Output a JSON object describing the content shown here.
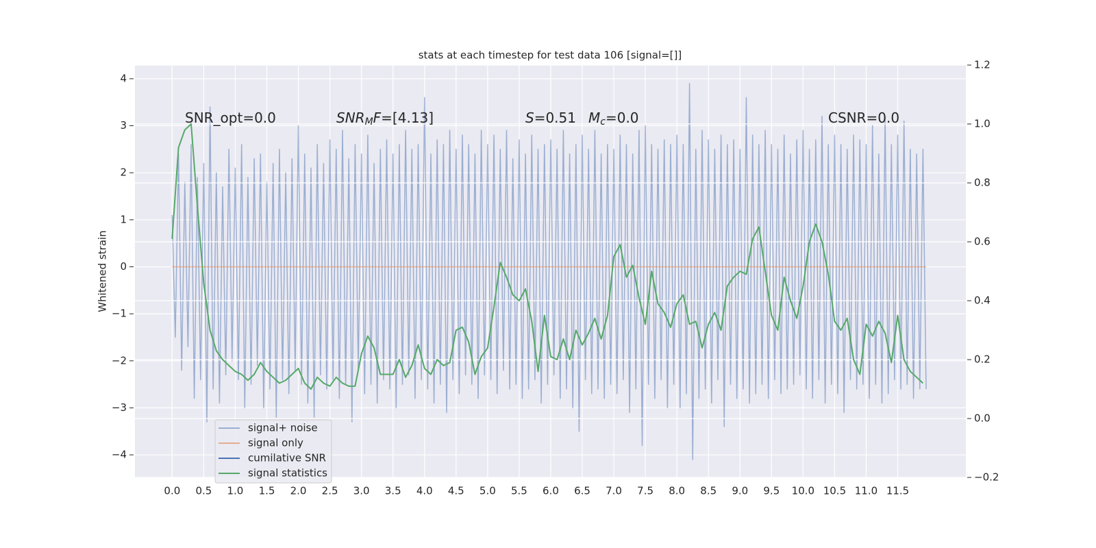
{
  "chart_data": {
    "type": "line",
    "title": "stats at each timestep for test data 106 [signal=[]]",
    "y_label": "Whitened strain",
    "grid": true,
    "legend": "lower left",
    "xlim": [
      -0.59,
      12.58
    ],
    "ylim": [
      -4.48,
      4.29
    ],
    "y2lim": [
      -0.2,
      1.2
    ],
    "xticks": [
      {
        "value": 0,
        "label": "0.0"
      },
      {
        "value": 0.5,
        "label": "0.5"
      },
      {
        "value": 1,
        "label": "1.0"
      },
      {
        "value": 1.5,
        "label": "1.5"
      },
      {
        "value": 2,
        "label": "2.0"
      },
      {
        "value": 2.5,
        "label": "2.5"
      },
      {
        "value": 3,
        "label": "3.0"
      },
      {
        "value": 3.5,
        "label": "3.5"
      },
      {
        "value": 4,
        "label": "4.0"
      },
      {
        "value": 4.5,
        "label": "4.5"
      },
      {
        "value": 5,
        "label": "5.0"
      },
      {
        "value": 5.5,
        "label": "5.5"
      },
      {
        "value": 6,
        "label": "6.0"
      },
      {
        "value": 6.5,
        "label": "6.5"
      },
      {
        "value": 7,
        "label": "7.0"
      },
      {
        "value": 7.5,
        "label": "7.5"
      },
      {
        "value": 8,
        "label": "8.0"
      },
      {
        "value": 8.5,
        "label": "8.5"
      },
      {
        "value": 9,
        "label": "9.0"
      },
      {
        "value": 9.5,
        "label": "9.5"
      },
      {
        "value": 10,
        "label": "10.0"
      },
      {
        "value": 10.5,
        "label": "10.5"
      },
      {
        "value": 11,
        "label": "11.0"
      },
      {
        "value": 11.5,
        "label": "11.5"
      }
    ],
    "yticks": [
      {
        "value": -4,
        "label": "−4"
      },
      {
        "value": -3,
        "label": "−3"
      },
      {
        "value": -2,
        "label": "−2"
      },
      {
        "value": -1,
        "label": "−1"
      },
      0,
      1,
      2,
      3,
      4
    ],
    "y2ticks": [
      {
        "value": -0.2,
        "label": "−0.2"
      },
      {
        "value": 0,
        "label": "0.0"
      },
      {
        "value": 0.2,
        "label": "0.2"
      },
      {
        "value": 0.4,
        "label": "0.4"
      },
      {
        "value": 0.6,
        "label": "0.6"
      },
      {
        "value": 0.8,
        "label": "0.8"
      },
      {
        "value": 1,
        "label": "1.0"
      },
      {
        "value": 1.2,
        "label": "1.2"
      }
    ],
    "annotations": [
      {
        "parts": [
          {
            "text": "SNR_opt=0.0"
          }
        ]
      },
      {
        "parts": [
          {
            "text": "SNR",
            "italic": true
          },
          {
            "text": "M",
            "italic": true,
            "sub": true
          },
          {
            "text": "F",
            "italic": true
          },
          {
            "text": "=[4.13]"
          }
        ]
      },
      {
        "parts": [
          {
            "text": "S",
            "italic": true
          },
          {
            "text": "=0.51"
          }
        ]
      },
      {
        "parts": [
          {
            "text": "M",
            "italic": true
          },
          {
            "text": "c",
            "italic": true,
            "sub": true
          },
          {
            "text": "=0.0"
          }
        ]
      },
      {
        "parts": [
          {
            "text": "CSNR=0.0"
          }
        ]
      }
    ],
    "series": [
      {
        "name": "signal+ noise",
        "color": "#4c72b0",
        "alpha": 0.5,
        "x": [
          0,
          0.05,
          0.1,
          0.15,
          0.2,
          0.25,
          0.3,
          0.35,
          0.4,
          0.45,
          0.5,
          0.55,
          0.6,
          0.65,
          0.7,
          0.75,
          0.8,
          0.85,
          0.9,
          0.95,
          1,
          1.05,
          1.1,
          1.15,
          1.2,
          1.25,
          1.3,
          1.35,
          1.4,
          1.45,
          1.5,
          1.55,
          1.6,
          1.65,
          1.7,
          1.75,
          1.8,
          1.85,
          1.9,
          1.95,
          2,
          2.05,
          2.1,
          2.15,
          2.2,
          2.25,
          2.3,
          2.35,
          2.4,
          2.45,
          2.5,
          2.55,
          2.6,
          2.65,
          2.7,
          2.75,
          2.8,
          2.85,
          2.9,
          2.95,
          3,
          3.05,
          3.1,
          3.15,
          3.2,
          3.25,
          3.3,
          3.35,
          3.4,
          3.45,
          3.5,
          3.55,
          3.6,
          3.65,
          3.7,
          3.75,
          3.8,
          3.85,
          3.9,
          3.95,
          4,
          4.05,
          4.1,
          4.15,
          4.2,
          4.25,
          4.3,
          4.35,
          4.4,
          4.45,
          4.5,
          4.55,
          4.6,
          4.65,
          4.7,
          4.75,
          4.8,
          4.85,
          4.9,
          4.95,
          5,
          5.05,
          5.1,
          5.15,
          5.2,
          5.25,
          5.3,
          5.35,
          5.4,
          5.45,
          5.5,
          5.55,
          5.6,
          5.65,
          5.7,
          5.75,
          5.8,
          5.85,
          5.9,
          5.95,
          6,
          6.05,
          6.1,
          6.15,
          6.2,
          6.25,
          6.3,
          6.35,
          6.4,
          6.45,
          6.5,
          6.55,
          6.6,
          6.65,
          6.7,
          6.75,
          6.8,
          6.85,
          6.9,
          6.95,
          7,
          7.05,
          7.1,
          7.15,
          7.2,
          7.25,
          7.3,
          7.35,
          7.4,
          7.45,
          7.5,
          7.55,
          7.6,
          7.65,
          7.7,
          7.75,
          7.8,
          7.85,
          7.9,
          7.95,
          8,
          8.05,
          8.1,
          8.15,
          8.2,
          8.25,
          8.3,
          8.35,
          8.4,
          8.45,
          8.5,
          8.55,
          8.6,
          8.65,
          8.7,
          8.75,
          8.8,
          8.85,
          8.9,
          8.95,
          9,
          9.05,
          9.1,
          9.15,
          9.2,
          9.25,
          9.3,
          9.35,
          9.4,
          9.45,
          9.5,
          9.55,
          9.6,
          9.65,
          9.7,
          9.75,
          9.8,
          9.85,
          9.9,
          9.95,
          10,
          10.05,
          10.1,
          10.15,
          10.2,
          10.25,
          10.3,
          10.35,
          10.4,
          10.45,
          10.5,
          10.55,
          10.6,
          10.65,
          10.7,
          10.75,
          10.8,
          10.85,
          10.9,
          10.95,
          11,
          11.05,
          11.1,
          11.15,
          11.2,
          11.25,
          11.3,
          11.35,
          11.4,
          11.45,
          11.5,
          11.55,
          11.6,
          11.65,
          11.7,
          11.75,
          11.8,
          11.85,
          11.9,
          11.95
        ],
        "values": [
          1.1,
          -1.5,
          2.4,
          -2.2,
          1.8,
          -1.7,
          2.6,
          -2.8,
          1.9,
          -2.4,
          2.2,
          -3.3,
          3.4,
          -2.6,
          2.0,
          -2.9,
          1.7,
          -2.3,
          2.5,
          -2.0,
          2.1,
          -2.4,
          2.6,
          -3.0,
          1.9,
          -2.5,
          2.3,
          -2.1,
          2.4,
          -3.0,
          1.8,
          -2.6,
          2.2,
          -3.2,
          2.5,
          -2.4,
          2.0,
          -2.7,
          2.3,
          -2.2,
          3.0,
          -2.5,
          2.4,
          -2.9,
          2.1,
          -3.2,
          2.6,
          -2.3,
          2.2,
          -2.6,
          2.7,
          -2.4,
          2.5,
          -2.8,
          2.9,
          -2.5,
          2.3,
          -3.3,
          2.6,
          -2.2,
          2.4,
          -2.7,
          2.8,
          -2.5,
          2.2,
          -2.9,
          2.5,
          -2.4,
          2.7,
          -2.6,
          2.4,
          -3.0,
          2.6,
          -2.5,
          2.9,
          -2.3,
          2.5,
          -2.8,
          2.6,
          -2.4,
          3.6,
          -2.6,
          2.4,
          -2.9,
          2.7,
          -2.5,
          2.6,
          -3.1,
          2.9,
          -2.4,
          2.5,
          -2.7,
          2.8,
          -2.3,
          2.6,
          -2.5,
          2.4,
          -2.8,
          2.9,
          -2.3,
          2.6,
          -2.4,
          2.8,
          -2.7,
          2.5,
          -2.2,
          2.9,
          -2.6,
          2.3,
          -2.5,
          2.7,
          -2.8,
          2.4,
          -2.6,
          2.8,
          -2.4,
          2.5,
          -2.9,
          2.6,
          -2.5,
          2.7,
          -2.3,
          2.5,
          -2.8,
          2.9,
          -2.6,
          2.4,
          -3.0,
          2.6,
          -3.5,
          2.8,
          -2.4,
          2.5,
          -2.7,
          2.9,
          -2.6,
          2.4,
          -2.8,
          2.6,
          -2.5,
          2.5,
          -2.7,
          2.8,
          -2.4,
          2.6,
          -3.1,
          2.4,
          -2.6,
          2.9,
          -3.8,
          3.0,
          -2.5,
          2.6,
          -2.8,
          2.5,
          -2.4,
          2.7,
          -3.0,
          2.6,
          -2.5,
          2.8,
          -3.0,
          2.6,
          -2.7,
          3.9,
          -4.1,
          2.5,
          -2.8,
          2.9,
          -2.6,
          2.7,
          -2.9,
          2.5,
          -2.4,
          2.8,
          -3.4,
          2.6,
          -2.5,
          2.7,
          -2.8,
          2.5,
          -2.6,
          3.6,
          -2.9,
          2.8,
          -2.7,
          2.6,
          -2.5,
          2.9,
          -2.8,
          2.6,
          -2.4,
          2.5,
          -2.7,
          2.8,
          -2.6,
          2.4,
          -2.5,
          2.7,
          -2.3,
          2.9,
          -2.6,
          2.5,
          -2.8,
          2.7,
          -2.4,
          3.2,
          -2.9,
          2.6,
          -2.5,
          2.8,
          -2.7,
          2.6,
          -3.1,
          2.5,
          -2.4,
          2.8,
          -2.6,
          2.7,
          -2.5,
          2.6,
          -2.8,
          3.0,
          -2.5,
          2.4,
          -2.9,
          3.2,
          -2.7,
          2.6,
          -2.4,
          2.8,
          -2.6,
          3.1,
          -2.5,
          2.5,
          -2.8,
          2.4,
          -2.6,
          2.5,
          -2.6
        ]
      },
      {
        "name": "signal only",
        "color": "#dd8452",
        "alpha": 0.6,
        "x": [
          0,
          11.95
        ],
        "values": [
          0,
          0
        ]
      },
      {
        "name": "cumilative SNR",
        "color": "#4c72b0",
        "x": [],
        "values": []
      },
      {
        "name": "signal statistics",
        "color": "#55a868",
        "axis": "y2",
        "x": [
          0,
          0.1,
          0.2,
          0.3,
          0.4,
          0.5,
          0.6,
          0.7,
          0.8,
          0.9,
          1,
          1.1,
          1.2,
          1.3,
          1.4,
          1.5,
          1.6,
          1.7,
          1.8,
          1.9,
          2,
          2.1,
          2.2,
          2.3,
          2.4,
          2.5,
          2.6,
          2.7,
          2.8,
          2.9,
          3,
          3.1,
          3.2,
          3.3,
          3.4,
          3.5,
          3.6,
          3.7,
          3.8,
          3.9,
          4,
          4.1,
          4.2,
          4.3,
          4.4,
          4.5,
          4.6,
          4.7,
          4.8,
          4.9,
          5,
          5.1,
          5.2,
          5.3,
          5.4,
          5.5,
          5.6,
          5.7,
          5.8,
          5.9,
          6,
          6.1,
          6.2,
          6.3,
          6.4,
          6.5,
          6.6,
          6.7,
          6.8,
          6.9,
          7,
          7.1,
          7.2,
          7.3,
          7.4,
          7.5,
          7.6,
          7.7,
          7.8,
          7.9,
          8,
          8.1,
          8.2,
          8.3,
          8.4,
          8.5,
          8.6,
          8.7,
          8.8,
          8.9,
          9,
          9.1,
          9.2,
          9.3,
          9.4,
          9.5,
          9.6,
          9.7,
          9.8,
          9.9,
          10,
          10.1,
          10.2,
          10.3,
          10.4,
          10.5,
          10.6,
          10.7,
          10.8,
          10.9,
          11,
          11.1,
          11.2,
          11.3,
          11.4,
          11.5,
          11.6,
          11.7,
          11.8,
          11.9
        ],
        "values": [
          0.61,
          0.92,
          0.98,
          1.0,
          0.72,
          0.46,
          0.3,
          0.23,
          0.2,
          0.18,
          0.16,
          0.15,
          0.13,
          0.15,
          0.19,
          0.16,
          0.14,
          0.12,
          0.13,
          0.15,
          0.17,
          0.12,
          0.1,
          0.14,
          0.12,
          0.11,
          0.14,
          0.12,
          0.11,
          0.11,
          0.22,
          0.28,
          0.24,
          0.15,
          0.15,
          0.15,
          0.2,
          0.14,
          0.18,
          0.25,
          0.17,
          0.15,
          0.2,
          0.18,
          0.19,
          0.3,
          0.31,
          0.26,
          0.15,
          0.21,
          0.24,
          0.38,
          0.53,
          0.48,
          0.42,
          0.4,
          0.44,
          0.33,
          0.16,
          0.35,
          0.21,
          0.2,
          0.27,
          0.2,
          0.3,
          0.25,
          0.29,
          0.34,
          0.27,
          0.35,
          0.55,
          0.59,
          0.48,
          0.52,
          0.41,
          0.32,
          0.5,
          0.39,
          0.36,
          0.31,
          0.39,
          0.42,
          0.32,
          0.33,
          0.24,
          0.32,
          0.36,
          0.3,
          0.45,
          0.48,
          0.5,
          0.49,
          0.61,
          0.65,
          0.5,
          0.35,
          0.3,
          0.48,
          0.4,
          0.34,
          0.45,
          0.6,
          0.66,
          0.6,
          0.49,
          0.33,
          0.3,
          0.34,
          0.2,
          0.15,
          0.32,
          0.28,
          0.33,
          0.29,
          0.19,
          0.35,
          0.2,
          0.16,
          0.14,
          0.12
        ]
      }
    ]
  }
}
